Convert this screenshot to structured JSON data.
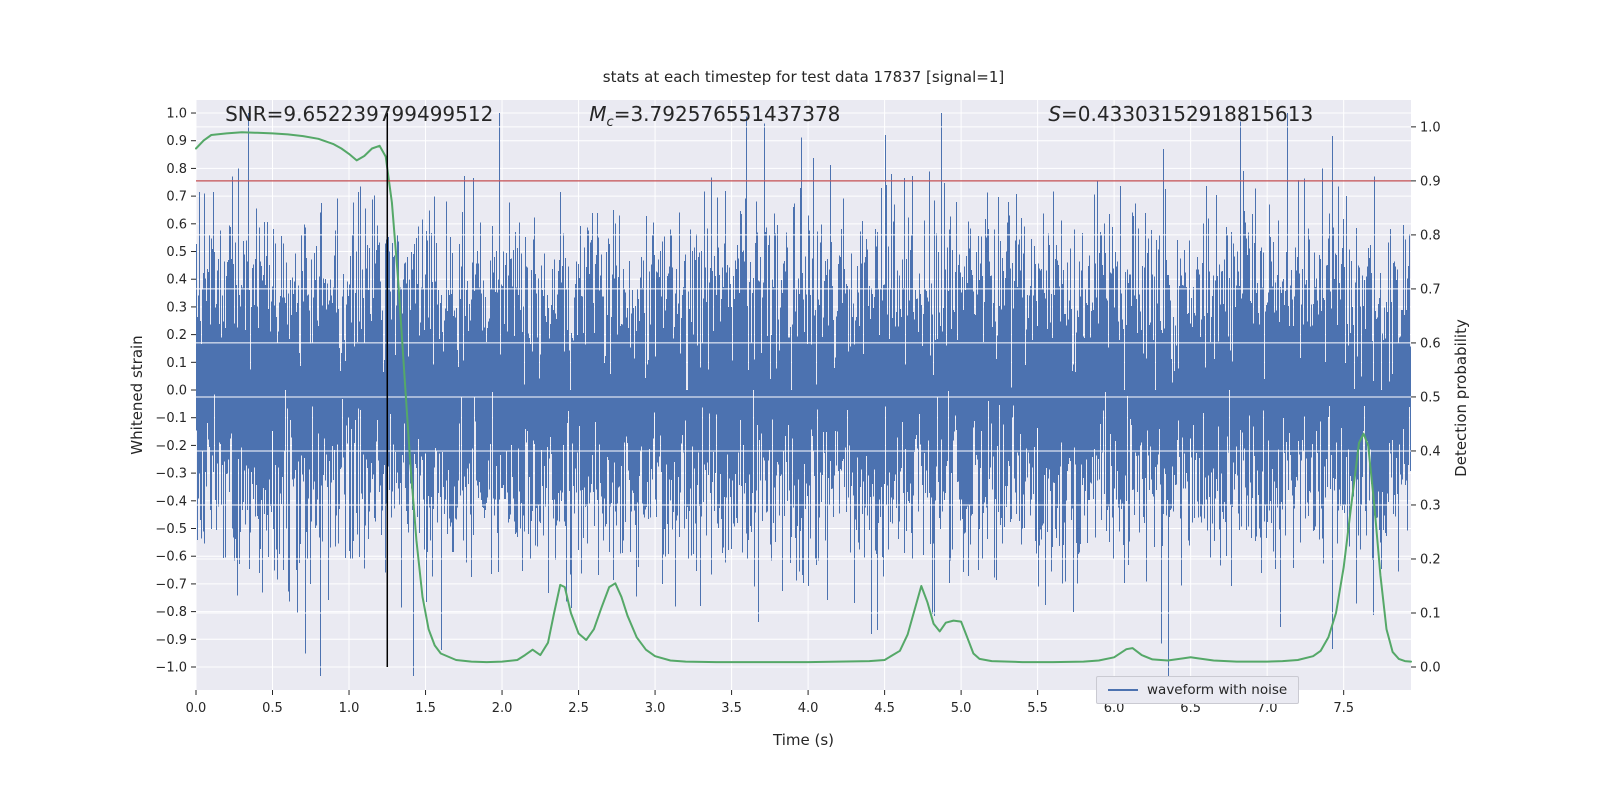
{
  "chart_data": {
    "type": "line",
    "title": "stats at each timestep for test data 17837 [signal=1]",
    "xlabel": "Time (s)",
    "ylabel_left": "Whitened strain",
    "ylabel_right": "Detection probability",
    "background": "#eaeaf2",
    "grid_color": "#ffffff",
    "text_color": "#262626",
    "xlim": [
      0.0,
      7.94
    ],
    "ylim_left": [
      -1.083,
      1.047
    ],
    "right_axis": {
      "p0_left": -1.0,
      "p1_left": 0.95
    },
    "xticks": {
      "values": [
        0.0,
        0.5,
        1.0,
        1.5,
        2.0,
        2.5,
        3.0,
        3.5,
        4.0,
        4.5,
        5.0,
        5.5,
        6.0,
        6.5,
        7.0,
        7.5
      ],
      "labels": [
        "0.0",
        "0.5",
        "1.0",
        "1.5",
        "2.0",
        "2.5",
        "3.0",
        "3.5",
        "4.0",
        "4.5",
        "5.0",
        "5.5",
        "6.0",
        "6.5",
        "7.0",
        "7.5"
      ]
    },
    "yticks_left": {
      "values": [
        1.0,
        0.9,
        0.8,
        0.7,
        0.6,
        0.5,
        0.4,
        0.3,
        0.2,
        0.1,
        0.0,
        -0.1,
        -0.2,
        -0.3,
        -0.4,
        -0.5,
        -0.6,
        -0.7,
        -0.8,
        -0.9,
        -1.0
      ],
      "labels": [
        "1.0",
        "0.9",
        "0.8",
        "0.7",
        "0.6",
        "0.5",
        "0.4",
        "0.3",
        "0.2",
        "0.1",
        "0.0",
        "−0.1",
        "−0.2",
        "−0.3",
        "−0.4",
        "−0.5",
        "−0.6",
        "−0.7",
        "−0.8",
        "−0.9",
        "−1.0"
      ]
    },
    "yticks_right": {
      "values": [
        1.0,
        0.9,
        0.8,
        0.7,
        0.6,
        0.5,
        0.4,
        0.3,
        0.2,
        0.1,
        0.0
      ],
      "labels": [
        "1.0",
        "0.9",
        "0.8",
        "0.7",
        "0.6",
        "0.5",
        "0.4",
        "0.3",
        "0.2",
        "0.1",
        "0.0"
      ]
    },
    "annotations": [
      {
        "label": "SNR",
        "value": "=9.652239799499512",
        "x": 0.19
      },
      {
        "label": "M",
        "sub": "c",
        "value": "=3.792576551437378",
        "x": 2.57
      },
      {
        "label": "S",
        "value": "=0.43303152918815613",
        "x": 5.57
      }
    ],
    "series": [
      {
        "name": "waveform with noise",
        "kind": "noise",
        "axis": "left",
        "color": "#4c72b0",
        "seed": 17837,
        "sigma": 0.27,
        "samples_per_column": 8,
        "clip": [
          -1.05,
          1.0
        ],
        "linewidth": 1
      },
      {
        "name": "detection probability",
        "kind": "line",
        "axis": "right",
        "color": "#55a868",
        "linewidth": 2,
        "points": [
          [
            0.0,
            0.96
          ],
          [
            0.05,
            0.975
          ],
          [
            0.1,
            0.985
          ],
          [
            0.2,
            0.988
          ],
          [
            0.3,
            0.99
          ],
          [
            0.4,
            0.989
          ],
          [
            0.5,
            0.988
          ],
          [
            0.6,
            0.986
          ],
          [
            0.7,
            0.983
          ],
          [
            0.8,
            0.978
          ],
          [
            0.9,
            0.968
          ],
          [
            0.95,
            0.96
          ],
          [
            1.0,
            0.95
          ],
          [
            1.05,
            0.938
          ],
          [
            1.1,
            0.946
          ],
          [
            1.15,
            0.96
          ],
          [
            1.2,
            0.965
          ],
          [
            1.24,
            0.945
          ],
          [
            1.28,
            0.86
          ],
          [
            1.32,
            0.72
          ],
          [
            1.36,
            0.55
          ],
          [
            1.4,
            0.38
          ],
          [
            1.44,
            0.235
          ],
          [
            1.48,
            0.13
          ],
          [
            1.52,
            0.07
          ],
          [
            1.56,
            0.04
          ],
          [
            1.6,
            0.025
          ],
          [
            1.7,
            0.013
          ],
          [
            1.8,
            0.01
          ],
          [
            1.9,
            0.009
          ],
          [
            2.0,
            0.01
          ],
          [
            2.1,
            0.013
          ],
          [
            2.15,
            0.022
          ],
          [
            2.2,
            0.032
          ],
          [
            2.25,
            0.022
          ],
          [
            2.3,
            0.045
          ],
          [
            2.34,
            0.1
          ],
          [
            2.38,
            0.152
          ],
          [
            2.41,
            0.148
          ],
          [
            2.45,
            0.1
          ],
          [
            2.5,
            0.062
          ],
          [
            2.55,
            0.05
          ],
          [
            2.6,
            0.07
          ],
          [
            2.65,
            0.11
          ],
          [
            2.7,
            0.148
          ],
          [
            2.74,
            0.155
          ],
          [
            2.78,
            0.13
          ],
          [
            2.82,
            0.095
          ],
          [
            2.88,
            0.055
          ],
          [
            2.94,
            0.032
          ],
          [
            3.0,
            0.02
          ],
          [
            3.1,
            0.012
          ],
          [
            3.2,
            0.01
          ],
          [
            3.4,
            0.009
          ],
          [
            3.7,
            0.009
          ],
          [
            4.0,
            0.009
          ],
          [
            4.2,
            0.01
          ],
          [
            4.4,
            0.011
          ],
          [
            4.5,
            0.013
          ],
          [
            4.6,
            0.03
          ],
          [
            4.65,
            0.06
          ],
          [
            4.7,
            0.11
          ],
          [
            4.74,
            0.15
          ],
          [
            4.78,
            0.12
          ],
          [
            4.82,
            0.08
          ],
          [
            4.86,
            0.066
          ],
          [
            4.9,
            0.082
          ],
          [
            4.95,
            0.086
          ],
          [
            5.0,
            0.084
          ],
          [
            5.04,
            0.055
          ],
          [
            5.08,
            0.025
          ],
          [
            5.12,
            0.015
          ],
          [
            5.2,
            0.011
          ],
          [
            5.4,
            0.009
          ],
          [
            5.6,
            0.009
          ],
          [
            5.8,
            0.01
          ],
          [
            5.9,
            0.012
          ],
          [
            6.0,
            0.018
          ],
          [
            6.08,
            0.033
          ],
          [
            6.12,
            0.035
          ],
          [
            6.18,
            0.022
          ],
          [
            6.25,
            0.014
          ],
          [
            6.35,
            0.012
          ],
          [
            6.45,
            0.016
          ],
          [
            6.5,
            0.018
          ],
          [
            6.55,
            0.016
          ],
          [
            6.65,
            0.012
          ],
          [
            6.8,
            0.01
          ],
          [
            7.0,
            0.01
          ],
          [
            7.1,
            0.011
          ],
          [
            7.2,
            0.013
          ],
          [
            7.3,
            0.02
          ],
          [
            7.35,
            0.03
          ],
          [
            7.4,
            0.055
          ],
          [
            7.45,
            0.1
          ],
          [
            7.5,
            0.185
          ],
          [
            7.55,
            0.3
          ],
          [
            7.6,
            0.415
          ],
          [
            7.63,
            0.432
          ],
          [
            7.66,
            0.41
          ],
          [
            7.7,
            0.3
          ],
          [
            7.74,
            0.17
          ],
          [
            7.78,
            0.07
          ],
          [
            7.82,
            0.028
          ],
          [
            7.86,
            0.015
          ],
          [
            7.9,
            0.011
          ],
          [
            7.94,
            0.01
          ]
        ]
      },
      {
        "name": "detection threshold",
        "kind": "hline",
        "axis": "right",
        "color": "#c44e52",
        "y": 0.9,
        "linewidth": 1.3
      },
      {
        "name": "event marker",
        "kind": "vline",
        "axis": "left",
        "color": "#000000",
        "x": 1.25,
        "y_from": -1.0,
        "y_to": 1.0,
        "linewidth": 1.5
      }
    ],
    "legend": {
      "label": "waveform with noise",
      "color": "#4c72b0",
      "loc": "lower right"
    }
  }
}
